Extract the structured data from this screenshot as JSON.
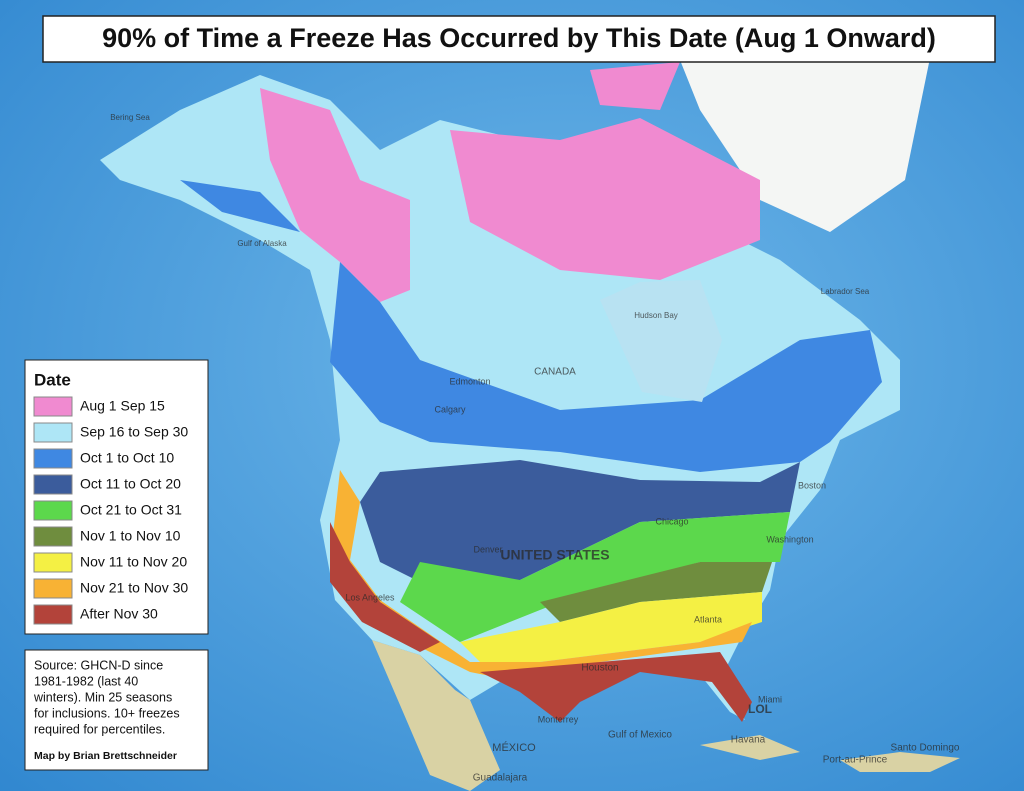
{
  "title": "90% of Time a Freeze Has Occurred by This Date (Aug 1 Onward)",
  "legend": {
    "title": "Date",
    "items": [
      {
        "label": "Aug 1 Sep 15",
        "color": "#f08ad0"
      },
      {
        "label": "Sep 16 to Sep 30",
        "color": "#aee6f6"
      },
      {
        "label": "Oct 1 to Oct 10",
        "color": "#3f88e2"
      },
      {
        "label": "Oct 11 to Oct 20",
        "color": "#3b5c9c"
      },
      {
        "label": "Oct 21 to Oct 31",
        "color": "#5cd84c"
      },
      {
        "label": "Nov 1 to Nov 10",
        "color": "#6f8d3e"
      },
      {
        "label": "Nov 11 to Nov 20",
        "color": "#f4f044"
      },
      {
        "label": "Nov 21 to Nov 30",
        "color": "#f8b234"
      },
      {
        "label": "After Nov 30",
        "color": "#b3433a"
      }
    ]
  },
  "source": {
    "lines": [
      "Source: GHCN-D since",
      "1981-1982 (last 40",
      "winters). Min 25 seasons",
      "for inclusions. 10+ freezes",
      "required for percentiles."
    ],
    "credit": "Map by Brian Brettschneider"
  },
  "places": [
    "Bering Sea",
    "Gulf of Alaska",
    "Hudson Bay",
    "Labrador Sea",
    "CANADA",
    "Edmonton",
    "Calgary",
    "Chicago",
    "Denver",
    "UNITED STATES",
    "Los Angeles",
    "Houston",
    "Boston",
    "Washington",
    "Atlanta",
    "Miami",
    "LOL",
    "Monterrey",
    "MÉXICO",
    "Gulf of Mexico",
    "Havana",
    "Port-au-Prince",
    "Santo Domingo",
    "Guadalajara"
  ]
}
